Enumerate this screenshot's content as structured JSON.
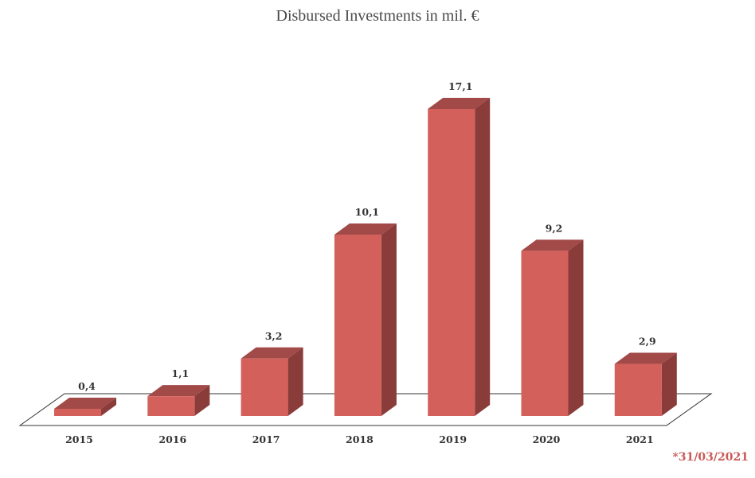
{
  "chart_data": {
    "type": "bar",
    "title": "Disbursed Investments in mil. €",
    "categories": [
      "2015",
      "2016",
      "2017",
      "2018",
      "2019",
      "2020",
      "2021"
    ],
    "values": [
      0.4,
      1.1,
      3.2,
      10.1,
      17.1,
      9.2,
      2.9
    ],
    "value_labels": [
      "0,4",
      "1,1",
      "3,2",
      "10,1",
      "17,1",
      "9,2",
      "2,9"
    ],
    "xlabel": "",
    "ylabel": "",
    "ylim": [
      0,
      17.1
    ],
    "grid": false,
    "legend": "none",
    "bar_3d": true
  },
  "footnote": "*31/03/2021",
  "colors": {
    "bar_front": "#d3605b",
    "bar_top": "#a24a48",
    "bar_side": "#8a3c3b",
    "footnote": "#c85b58",
    "floor_stroke": "#333333"
  }
}
